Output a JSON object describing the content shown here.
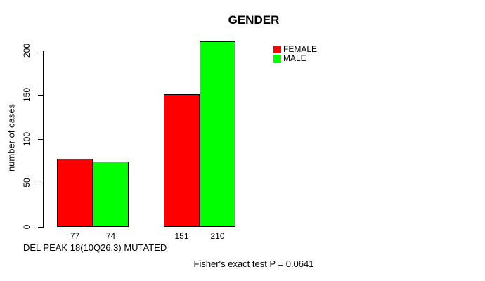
{
  "chart_data": {
    "type": "bar",
    "title": "GENDER",
    "ylabel": "number of cases",
    "xlabel": "DEL PEAK 18(10Q26.3) MUTATED",
    "annotation": "Fisher's exact test P = 0.0641",
    "categories": [
      "",
      ""
    ],
    "series": [
      {
        "name": "FEMALE",
        "color": "#FF0000",
        "values": [
          77,
          151
        ]
      },
      {
        "name": "MALE",
        "color": "#00FF00",
        "values": [
          74,
          210
        ]
      }
    ],
    "bar_labels": [
      "77",
      "74",
      "151",
      "210"
    ],
    "yticks": [
      0,
      50,
      100,
      150,
      200
    ],
    "ylim": [
      0,
      210
    ],
    "grid": false,
    "legend_position": "top-right",
    "axis_color": "#000000",
    "background": "#FFFFFF"
  }
}
